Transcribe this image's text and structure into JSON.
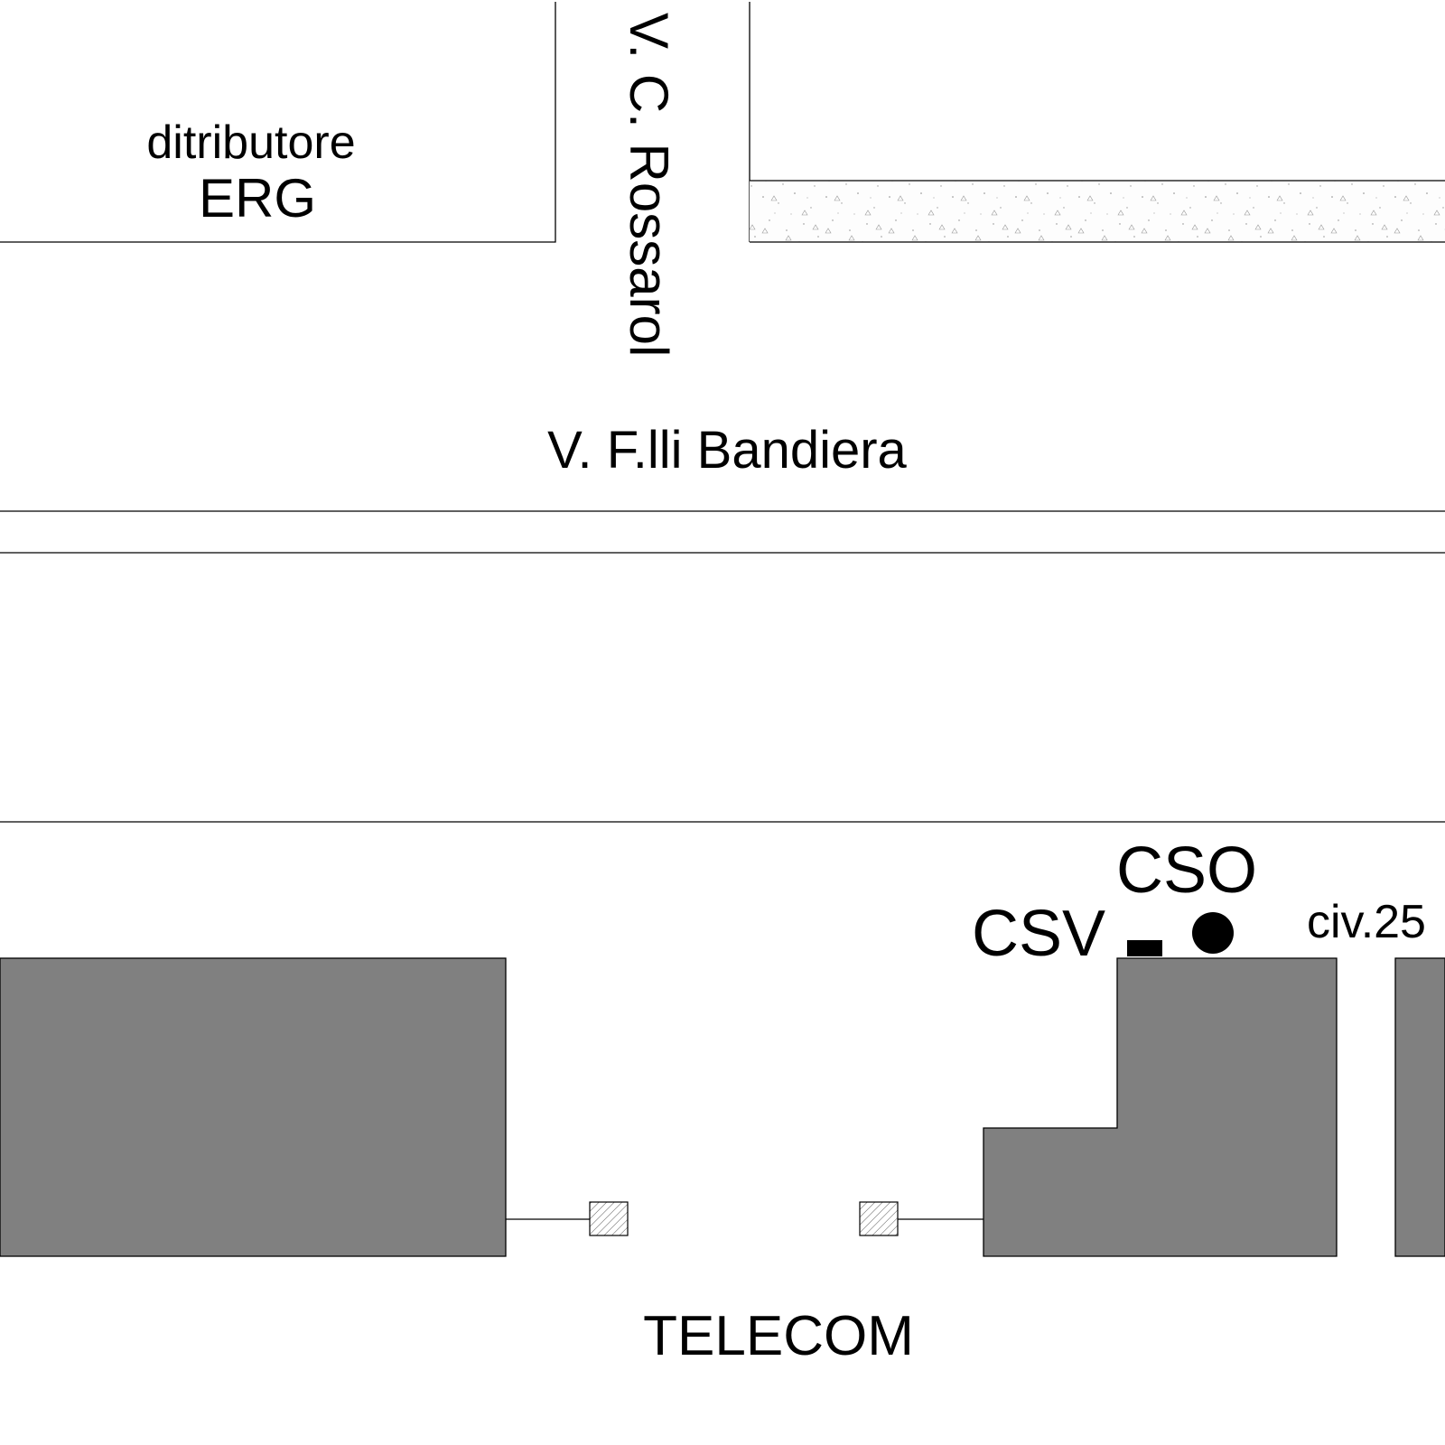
{
  "map": {
    "labels": {
      "distributor_line1": "ditributore",
      "distributor_line2": "ERG",
      "side_street": "V. C. Rossarol",
      "main_street": "V. F.lli Bandiera",
      "csv": "CSV",
      "cso": "CSO",
      "house_number": "civ.25",
      "telecom": "TELECOM"
    },
    "colors": {
      "building_fill": "#808080",
      "line": "#000000",
      "background": "#ffffff"
    },
    "symbols": {
      "csv_marker": "filled-rectangle",
      "cso_marker": "filled-circle",
      "telecom_box": "hatched-square"
    }
  }
}
